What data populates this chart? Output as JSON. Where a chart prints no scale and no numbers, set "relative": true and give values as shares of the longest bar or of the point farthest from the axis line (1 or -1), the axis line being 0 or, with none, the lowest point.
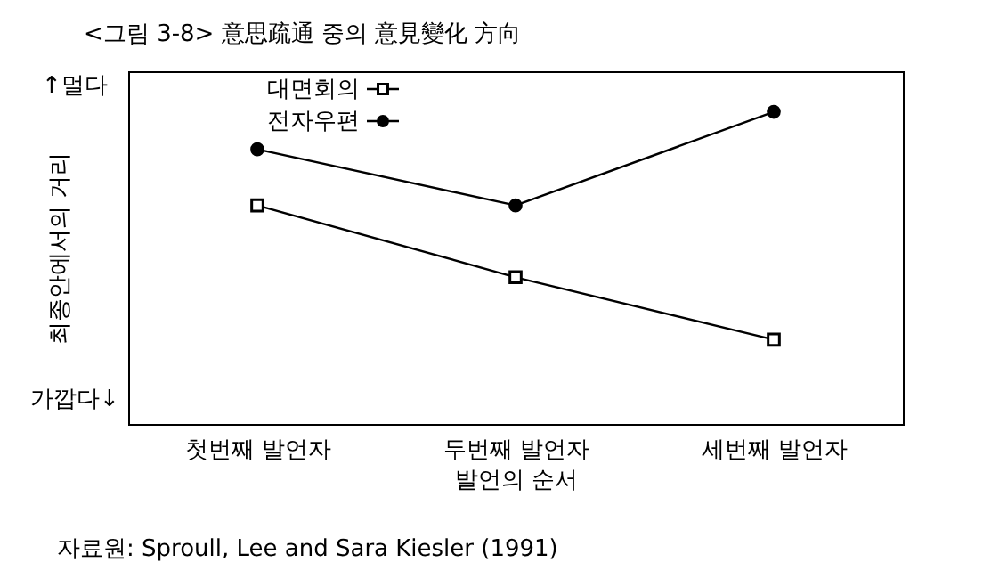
{
  "chart_data": {
    "type": "line",
    "title": "<그림 3-8> 意思疏通 중의 意見變化 方向",
    "xlabel": "발언의 순서",
    "ylabel": "최종안에서의 거리",
    "relative": true,
    "categories": [
      "첫번째 발언자",
      "두번째 발언자",
      "세번째 발언자"
    ],
    "series": [
      {
        "name": "대면회의",
        "color": "#000000",
        "marker": "square",
        "values": [
          0.7,
          0.47,
          0.27
        ]
      },
      {
        "name": "전자우편",
        "color": "#000000",
        "marker": "circle",
        "values": [
          0.88,
          0.7,
          1
        ]
      }
    ],
    "annotations": [
      "↑멀다",
      "가깝다↓",
      "자료원: Sproull, Lee and Sara Kiesler (1991)"
    ],
    "legend": "top left",
    "grid": false
  }
}
